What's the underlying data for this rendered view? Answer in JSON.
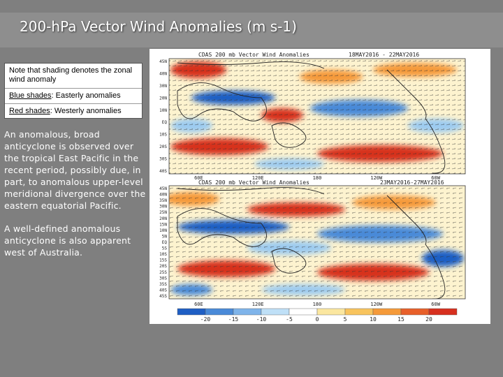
{
  "slide": {
    "title": "200-hPa Vector Wind Anomalies  (m s-1)"
  },
  "note": {
    "line1": "Note that shading denotes the zonal wind anomaly",
    "blue_label": "Blue shades",
    "blue_text": ": Easterly anomalies",
    "red_label": "Red shades",
    "red_text": ": Westerly anomalies"
  },
  "body": {
    "para1": "An anomalous, broad anticyclone is observed over the tropical East Pacific in the recent period, possibly due, in part, to anomalous upper-level meridional divergence over the eastern equatorial Pacific.",
    "para2": "A well-defined anomalous anticyclone is also apparent west of Australia."
  },
  "maps": [
    {
      "title": "CDAS  200  mb  Vector  Wind  Anomalies",
      "dates": "18MAY2016 - 22MAY2016"
    },
    {
      "title": "CDAS  200  mb  Vector  Wind  Anomalies",
      "dates": "23MAY2016-27MAY2016"
    }
  ],
  "axes": {
    "lat_labels": [
      "45N",
      "40N",
      "35N",
      "30N",
      "25N",
      "20N",
      "15N",
      "10N",
      "5N",
      "EQ",
      "5S",
      "10S",
      "15S",
      "20S",
      "25S",
      "30S",
      "35S",
      "40S",
      "45S"
    ],
    "lat_labels_top": [
      "45N",
      "40N",
      "30N",
      "20N",
      "10N",
      "EQ",
      "10S",
      "20S",
      "30S",
      "40S"
    ],
    "lon_labels": [
      "60E",
      "120E",
      "180",
      "120W",
      "60W"
    ]
  },
  "colorbar": {
    "ticks": [
      "-20",
      "-15",
      "-10",
      "-5",
      "0",
      "5",
      "10",
      "15",
      "20"
    ]
  },
  "colors": {
    "background": "#7f7f7f",
    "deep_blue": "#1f5fc4",
    "light_blue": "#9ccbf0",
    "neutral": "#ffffff",
    "light_yellow": "#fbe7a0",
    "orange": "#f59a3a",
    "red": "#d7301f"
  }
}
